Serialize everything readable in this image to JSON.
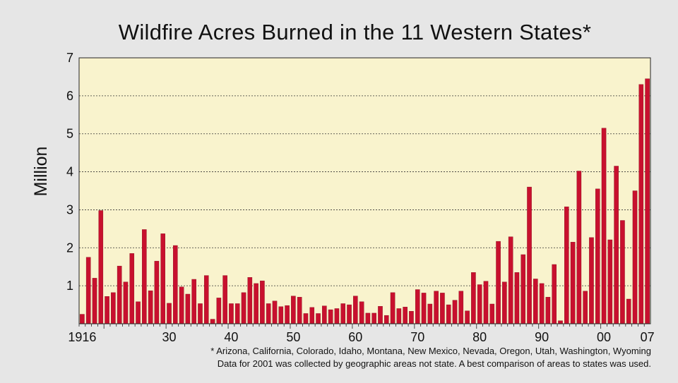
{
  "chart_data": {
    "type": "bar",
    "title": "Wildfire Acres Burned in the 11 Western States*",
    "ylabel": "Million",
    "xlabel": "",
    "ylim": [
      0,
      7
    ],
    "yticks": [
      1,
      2,
      3,
      4,
      5,
      6,
      7
    ],
    "grid": "horizontal-dotted",
    "legend": "none",
    "x_start": 1916,
    "x_end": 2007,
    "xtick_years": [
      1916,
      1930,
      1940,
      1950,
      1960,
      1970,
      1980,
      1990,
      2000,
      2007
    ],
    "xtick_labels": [
      "1916",
      "30",
      "40",
      "50",
      "60",
      "70",
      "80",
      "90",
      "00",
      "07"
    ],
    "series": [
      {
        "values": [
          0.25,
          1.75,
          1.2,
          2.98,
          0.72,
          0.82,
          1.52,
          1.1,
          1.85,
          0.58,
          2.48,
          0.87,
          1.65,
          2.37,
          0.54,
          2.06,
          0.97,
          0.78,
          1.17,
          0.53,
          1.27,
          0.12,
          0.68,
          1.27,
          0.53,
          0.53,
          0.82,
          1.22,
          1.06,
          1.13,
          0.53,
          0.6,
          0.45,
          0.48,
          0.73,
          0.7,
          0.27,
          0.43,
          0.27,
          0.47,
          0.37,
          0.4,
          0.53,
          0.5,
          0.73,
          0.58,
          0.28,
          0.28,
          0.46,
          0.22,
          0.82,
          0.4,
          0.44,
          0.33,
          0.9,
          0.81,
          0.52,
          0.86,
          0.81,
          0.5,
          0.62,
          0.86,
          0.34,
          1.35,
          1.03,
          1.12,
          0.52,
          2.17,
          1.1,
          2.29,
          1.35,
          1.82,
          3.6,
          1.18,
          1.06,
          0.7,
          1.56,
          0.08,
          3.08,
          2.15,
          4.02,
          0.86,
          2.27,
          3.55,
          5.15,
          2.21,
          4.15,
          2.72,
          0.65,
          3.5,
          6.3,
          6.45
        ]
      }
    ]
  },
  "colors": {
    "background": "#e6e6e6",
    "plot_area": "#f9f3cd",
    "bar": "#c8102e",
    "bar_edge": "#8a0a1e",
    "grid": "#333333"
  },
  "footnotes": {
    "line1": "* Arizona, California, Colorado, Idaho, Montana, New Mexico, Nevada, Oregon, Utah, Washington, Wyoming",
    "line2": "Data for 2001 was collected by geographic areas not state.  A best comparison of areas to states was used."
  }
}
